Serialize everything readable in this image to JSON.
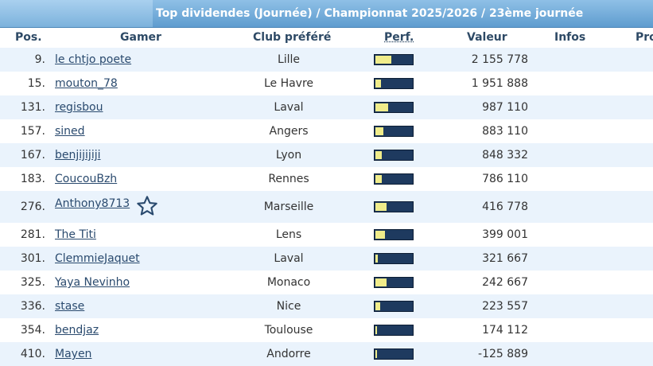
{
  "title": "Top dividendes (Journée) / Championnat 2025/2026 / 23ème journée",
  "columns": {
    "pos": "Pos.",
    "gamer": "Gamer",
    "club": "Club préféré",
    "perf": "Perf.",
    "valeur": "Valeur",
    "infos": "Infos",
    "pro": "Pro"
  },
  "rows": [
    {
      "pos": "9.",
      "gamer": "le chtjo poete",
      "club": "Lille",
      "valeur": "2 155 778",
      "perf_fraction": 0.42
    },
    {
      "pos": "15.",
      "gamer": "mouton_78",
      "club": "Le Havre",
      "valeur": "1 951 888",
      "perf_fraction": 0.14
    },
    {
      "pos": "131.",
      "gamer": "regisbou",
      "club": "Laval",
      "valeur": "987 110",
      "perf_fraction": 0.33
    },
    {
      "pos": "157.",
      "gamer": "sined",
      "club": "Angers",
      "valeur": "883 110",
      "perf_fraction": 0.2
    },
    {
      "pos": "167.",
      "gamer": "benjijijiji",
      "club": "Lyon",
      "valeur": "848 332",
      "perf_fraction": 0.17
    },
    {
      "pos": "183.",
      "gamer": "CoucouBzh",
      "club": "Rennes",
      "valeur": "786 110",
      "perf_fraction": 0.17
    },
    {
      "pos": "276.",
      "gamer": "Anthony8713",
      "club": "Marseille",
      "valeur": "416 778",
      "perf_fraction": 0.29,
      "star": true
    },
    {
      "pos": "281.",
      "gamer": "The Titi",
      "club": "Lens",
      "valeur": "399 001",
      "perf_fraction": 0.25
    },
    {
      "pos": "301.",
      "gamer": "ClemmieJaquet",
      "club": "Laval",
      "valeur": "321 667",
      "perf_fraction": 0.06
    },
    {
      "pos": "325.",
      "gamer": "Yaya Nevinho",
      "club": "Monaco",
      "valeur": "242 667",
      "perf_fraction": 0.29
    },
    {
      "pos": "336.",
      "gamer": "stase",
      "club": "Nice",
      "valeur": "223 557",
      "perf_fraction": 0.12
    },
    {
      "pos": "354.",
      "gamer": "bendjaz",
      "club": "Toulouse",
      "valeur": "174 112",
      "perf_fraction": 0.0
    },
    {
      "pos": "410.",
      "gamer": "Mayen",
      "club": "Andorre",
      "valeur": "-125 889",
      "perf_fraction": 0.0
    }
  ],
  "star_icon": "star-outline-icon"
}
